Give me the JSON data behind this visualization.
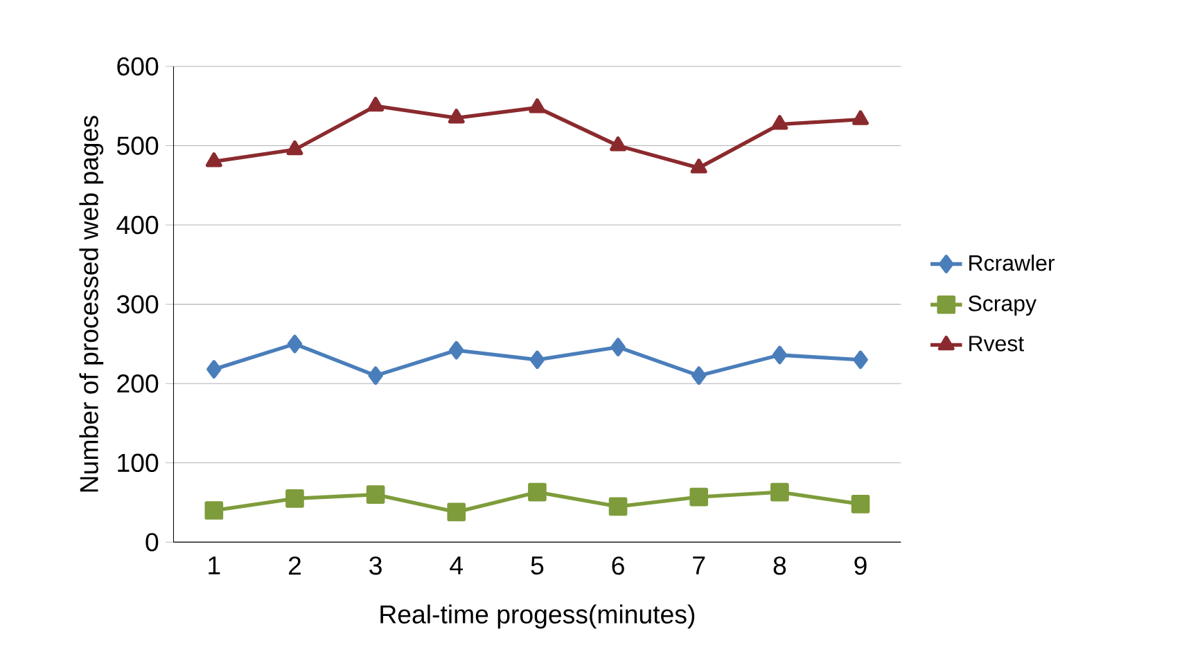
{
  "chart_data": {
    "type": "line",
    "xlabel": "Real-time progess(minutes)",
    "ylabel": "Number of processed web pages",
    "categories": [
      "1",
      "2",
      "3",
      "4",
      "5",
      "6",
      "7",
      "8",
      "9"
    ],
    "series": [
      {
        "name": "Rcrawler",
        "color": "#4a7ebb",
        "marker": "diamond",
        "values": [
          218,
          250,
          210,
          242,
          230,
          246,
          210,
          236,
          230
        ]
      },
      {
        "name": "Scrapy",
        "color": "#7e9c3b",
        "marker": "square",
        "values": [
          40,
          55,
          60,
          38,
          63,
          45,
          57,
          63,
          48
        ]
      },
      {
        "name": "Rvest",
        "color": "#8b2a2e",
        "marker": "triangle",
        "values": [
          480,
          495,
          550,
          535,
          548,
          500,
          472,
          527,
          533
        ]
      }
    ],
    "ylim": [
      0,
      600
    ],
    "yticks": [
      0,
      100,
      200,
      300,
      400,
      500,
      600
    ],
    "grid": "y",
    "legend": "right",
    "line_style": "solid"
  }
}
